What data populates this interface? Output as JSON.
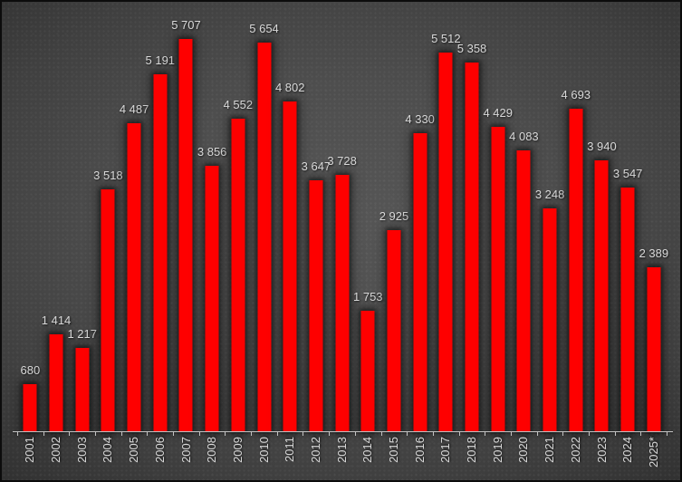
{
  "chart_data": {
    "type": "bar",
    "title": "",
    "xlabel": "",
    "ylabel": "",
    "categories": [
      "2001",
      "2002",
      "2003",
      "2004",
      "2005",
      "2006",
      "2007",
      "2008",
      "2009",
      "2010",
      "2011",
      "2012",
      "2013",
      "2014",
      "2015",
      "2016",
      "2017",
      "2018",
      "2019",
      "2020",
      "2021",
      "2022",
      "2023",
      "2024",
      "2025*"
    ],
    "values": [
      680,
      1414,
      1217,
      3518,
      4487,
      5191,
      5707,
      3856,
      4552,
      5654,
      4802,
      3647,
      3728,
      1753,
      2925,
      4330,
      5512,
      5358,
      4429,
      4083,
      3248,
      4693,
      3940,
      3547,
      2389
    ],
    "value_labels": [
      "680",
      "1 414",
      "1 217",
      "3 518",
      "4 487",
      "5 191",
      "5 707",
      "3 856",
      "4 552",
      "5 654",
      "4 802",
      "3 647",
      "3 728",
      "1 753",
      "2 925",
      "4 330",
      "5 512",
      "5 358",
      "4 429",
      "4 083",
      "3 248",
      "4 693",
      "3 940",
      "3 547",
      "2 389"
    ],
    "ylim": [
      0,
      5800
    ],
    "y_axis_visible": false,
    "grid": "off",
    "legend": "none",
    "x_label_rotation_deg": -90,
    "data_labels": "above bars"
  },
  "style": {
    "bar_color": "#fe0000",
    "label_color": "#d9d9d9",
    "axis_color": "#c3c3c3",
    "background_center": "#565656",
    "background_edge": "#242424",
    "frame_border_color": "#0c0c0c"
  }
}
